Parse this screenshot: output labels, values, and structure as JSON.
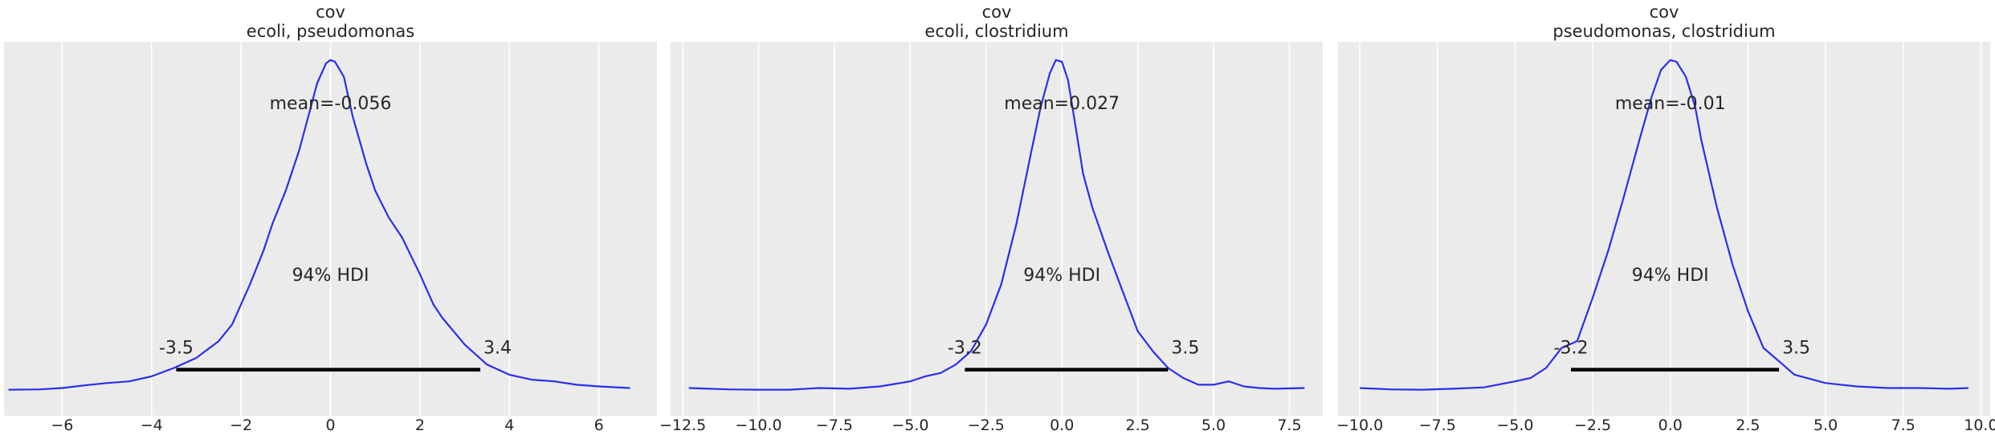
{
  "colors": {
    "background": "#ebebeb",
    "grid": "#ffffff",
    "curve": "#2a2eec",
    "hdi_bar": "#000000",
    "text": "#262626"
  },
  "chart_data": [
    {
      "type": "line",
      "title_line1": "cov",
      "title_line2": "ecoli, pseudomonas",
      "xlim": [
        -7.3,
        7.3
      ],
      "xticks": [
        -6,
        -4,
        -2,
        0,
        2,
        4,
        6
      ],
      "xtick_labels": [
        "−6",
        "−4",
        "−2",
        "0",
        "2",
        "4",
        "6"
      ],
      "grid": true,
      "mean_label": "mean=-0.056",
      "hdi_label": "94% HDI",
      "hdi": [
        -3.45,
        3.35
      ],
      "hdi_low_label": "-3.5",
      "hdi_high_label": "3.4",
      "series": [
        {
          "x": [
            -7.2,
            -6.5,
            -6.0,
            -5.5,
            -5.0,
            -4.5,
            -4.0,
            -3.5,
            -3.0,
            -2.5,
            -2.2,
            -2.0,
            -1.8,
            -1.5,
            -1.3,
            -1.0,
            -0.7,
            -0.5,
            -0.3,
            -0.1,
            0.0,
            0.1,
            0.3,
            0.5,
            0.8,
            1.0,
            1.3,
            1.6,
            2.0,
            2.3,
            2.5,
            3.0,
            3.5,
            4.0,
            4.5,
            5.0,
            5.5,
            6.0,
            6.7
          ],
          "y": [
            0.005,
            0.006,
            0.01,
            0.018,
            0.025,
            0.03,
            0.045,
            0.07,
            0.1,
            0.15,
            0.2,
            0.26,
            0.32,
            0.42,
            0.5,
            0.6,
            0.72,
            0.82,
            0.92,
            0.98,
            0.99,
            0.985,
            0.94,
            0.82,
            0.68,
            0.6,
            0.52,
            0.46,
            0.35,
            0.26,
            0.22,
            0.14,
            0.08,
            0.05,
            0.035,
            0.03,
            0.02,
            0.015,
            0.01
          ]
        }
      ]
    },
    {
      "type": "line",
      "title_line1": "cov",
      "title_line2": "ecoli, clostridium",
      "xlim": [
        -12.9,
        8.6
      ],
      "xticks": [
        -12.5,
        -10,
        -7.5,
        -5,
        -2.5,
        0,
        2.5,
        5,
        7.5
      ],
      "xtick_labels": [
        "−12.5",
        "−10.0",
        "−7.5",
        "−5.0",
        "−2.5",
        "0.0",
        "2.5",
        "5.0",
        "7.5"
      ],
      "grid": true,
      "mean_label": "mean=0.027",
      "hdi_label": "94% HDI",
      "hdi": [
        -3.2,
        3.5
      ],
      "hdi_low_label": "-3.2",
      "hdi_high_label": "3.5",
      "series": [
        {
          "x": [
            -12.3,
            -11.0,
            -10.0,
            -9.0,
            -8.0,
            -7.0,
            -6.0,
            -5.0,
            -4.5,
            -4.0,
            -3.5,
            -3.0,
            -2.5,
            -2.0,
            -1.5,
            -1.0,
            -0.7,
            -0.4,
            -0.2,
            0.0,
            0.2,
            0.4,
            0.7,
            1.0,
            1.5,
            2.0,
            2.5,
            3.0,
            3.5,
            4.0,
            4.5,
            5.0,
            5.5,
            6.0,
            6.5,
            7.0,
            8.0
          ],
          "y": [
            0.01,
            0.006,
            0.005,
            0.005,
            0.01,
            0.008,
            0.015,
            0.03,
            0.045,
            0.055,
            0.08,
            0.12,
            0.2,
            0.32,
            0.5,
            0.72,
            0.85,
            0.95,
            0.99,
            0.985,
            0.93,
            0.82,
            0.65,
            0.55,
            0.42,
            0.3,
            0.18,
            0.12,
            0.07,
            0.04,
            0.02,
            0.02,
            0.03,
            0.015,
            0.01,
            0.008,
            0.01
          ]
        }
      ]
    },
    {
      "type": "line",
      "title_line1": "cov",
      "title_line2": "pseudomonas, clostridium",
      "xlim": [
        -10.7,
        10.3
      ],
      "xticks": [
        -10,
        -7.5,
        -5,
        -2.5,
        0,
        2.5,
        5,
        7.5,
        10
      ],
      "xtick_labels": [
        "−10.0",
        "−7.5",
        "−5.0",
        "−2.5",
        "0.0",
        "2.5",
        "5.0",
        "7.5",
        "10.0"
      ],
      "grid": true,
      "mean_label": "mean=-0.01",
      "hdi_label": "94% HDI",
      "hdi": [
        -3.2,
        3.5
      ],
      "hdi_low_label": "-3.2",
      "hdi_high_label": "3.5",
      "series": [
        {
          "x": [
            -10.0,
            -9.0,
            -8.0,
            -7.0,
            -6.0,
            -5.0,
            -4.5,
            -4.0,
            -3.5,
            -3.0,
            -2.5,
            -2.0,
            -1.5,
            -1.0,
            -0.6,
            -0.3,
            0.0,
            0.2,
            0.5,
            0.8,
            1.0,
            1.5,
            2.0,
            2.5,
            3.0,
            3.5,
            4.0,
            5.0,
            6.0,
            7.0,
            8.0,
            9.0,
            9.6
          ],
          "y": [
            0.01,
            0.006,
            0.005,
            0.008,
            0.012,
            0.03,
            0.04,
            0.07,
            0.13,
            0.15,
            0.28,
            0.42,
            0.58,
            0.75,
            0.88,
            0.96,
            0.99,
            0.985,
            0.94,
            0.85,
            0.75,
            0.55,
            0.38,
            0.24,
            0.13,
            0.09,
            0.05,
            0.025,
            0.015,
            0.01,
            0.01,
            0.008,
            0.01
          ]
        }
      ]
    }
  ]
}
